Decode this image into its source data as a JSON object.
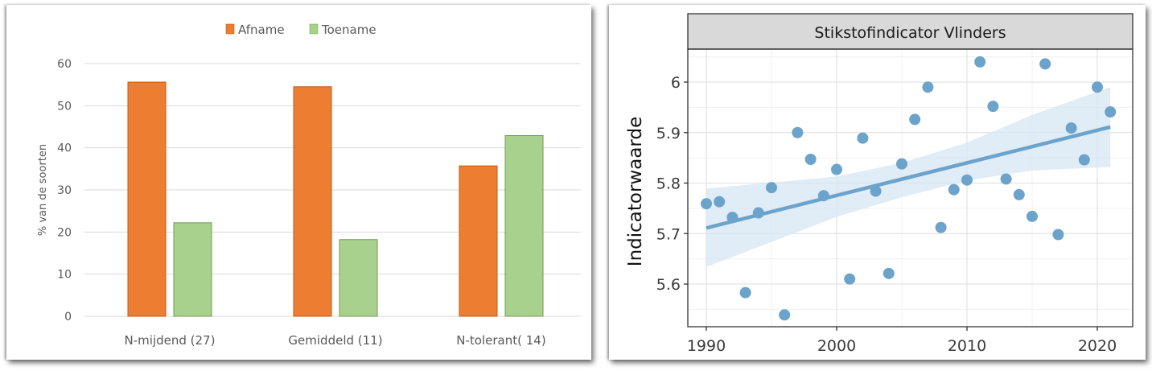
{
  "chart_data": [
    {
      "type": "bar",
      "title": "",
      "legend": {
        "position": "top",
        "entries": [
          "Afname",
          "Toename"
        ]
      },
      "categories": [
        "N-mijdend (27)",
        "Gemiddeld (11)",
        "N-tolerant( 14)"
      ],
      "series": [
        {
          "name": "Afname",
          "color": "#ED7D31",
          "values": [
            55.6,
            54.5,
            35.7
          ]
        },
        {
          "name": "Toename",
          "color": "#A9D18E",
          "values": [
            22.2,
            18.2,
            42.9
          ]
        }
      ],
      "xlabel": "",
      "ylabel": "% van de soorten",
      "ylim": [
        0,
        60
      ],
      "yticks": [
        0,
        10,
        20,
        30,
        40,
        50,
        60
      ],
      "grid": "horizontal"
    },
    {
      "type": "scatter",
      "title": "Stikstofindicator Vlinders",
      "xlabel": "",
      "ylabel": "Indicatorwaarde",
      "xlim": [
        1988.6,
        2022.7
      ],
      "ylim": [
        5.51,
        6.07
      ],
      "xticks": [
        1990,
        2000,
        2010,
        2020
      ],
      "yticks": [
        5.6,
        5.7,
        5.8,
        5.9,
        6.0
      ],
      "grid": true,
      "point_color": "#6BA3CB",
      "points": [
        {
          "x": 1990,
          "y": 5.759
        },
        {
          "x": 1991,
          "y": 5.763
        },
        {
          "x": 1992,
          "y": 5.732
        },
        {
          "x": 1993,
          "y": 5.583
        },
        {
          "x": 1994,
          "y": 5.741
        },
        {
          "x": 1995,
          "y": 5.791
        },
        {
          "x": 1996,
          "y": 5.539
        },
        {
          "x": 1997,
          "y": 5.9
        },
        {
          "x": 1998,
          "y": 5.847
        },
        {
          "x": 1999,
          "y": 5.775
        },
        {
          "x": 2000,
          "y": 5.827
        },
        {
          "x": 2001,
          "y": 5.61
        },
        {
          "x": 2002,
          "y": 5.889
        },
        {
          "x": 2003,
          "y": 5.784
        },
        {
          "x": 2004,
          "y": 5.621
        },
        {
          "x": 2005,
          "y": 5.838
        },
        {
          "x": 2006,
          "y": 5.926
        },
        {
          "x": 2007,
          "y": 5.99
        },
        {
          "x": 2008,
          "y": 5.712
        },
        {
          "x": 2009,
          "y": 5.787
        },
        {
          "x": 2010,
          "y": 5.806
        },
        {
          "x": 2011,
          "y": 6.04
        },
        {
          "x": 2012,
          "y": 5.952
        },
        {
          "x": 2013,
          "y": 5.808
        },
        {
          "x": 2014,
          "y": 5.777
        },
        {
          "x": 2015,
          "y": 5.734
        },
        {
          "x": 2016,
          "y": 6.036
        },
        {
          "x": 2017,
          "y": 5.698
        },
        {
          "x": 2018,
          "y": 5.909
        },
        {
          "x": 2019,
          "y": 5.846
        },
        {
          "x": 2020,
          "y": 5.99
        },
        {
          "x": 2021,
          "y": 5.941
        }
      ],
      "trend": {
        "type": "linear",
        "x0": 1990,
        "y0": 5.711,
        "x1": 2021,
        "y1": 5.911,
        "ci_band": [
          {
            "x": 1990,
            "lo": 5.634,
            "hi": 5.789
          },
          {
            "x": 2000,
            "lo": 5.733,
            "hi": 5.813
          },
          {
            "x": 2005,
            "lo": 5.772,
            "hi": 5.84
          },
          {
            "x": 2010,
            "lo": 5.805,
            "hi": 5.88
          },
          {
            "x": 2015,
            "lo": 5.825,
            "hi": 5.935
          },
          {
            "x": 2021,
            "lo": 5.832,
            "hi": 5.99
          }
        ]
      }
    }
  ]
}
